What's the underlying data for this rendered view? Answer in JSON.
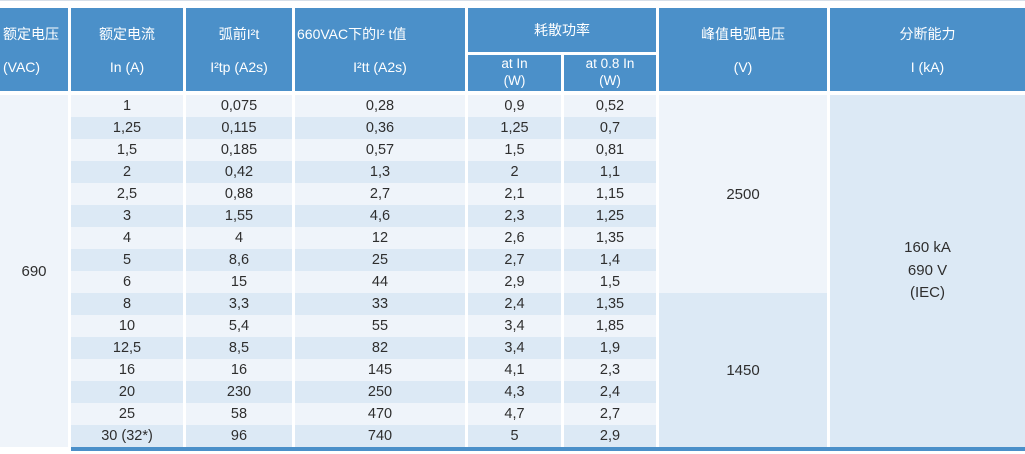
{
  "table": {
    "headers": {
      "rated_voltage": {
        "line1": "额定电压",
        "line2": "(VAC)"
      },
      "rated_current": {
        "line1": "额定电流",
        "line2": "In (A)"
      },
      "prearc_i2t": {
        "line1": "弧前I²t",
        "line2": "I²tp (A2s)"
      },
      "i2t_660vac": {
        "line1": "660VAC下的I² t值",
        "line2": "I²tt (A2s)"
      },
      "power_group": {
        "label": "耗散功率"
      },
      "power_at_in": {
        "line1": "at  In",
        "line2": "(W)"
      },
      "power_at_08in": {
        "line1": "at 0.8  In",
        "line2": "(W)"
      },
      "peak_arc_voltage": {
        "line1": "峰值电弧电压",
        "line2": "(V)"
      },
      "breaking_capacity": {
        "line1": "分断能力",
        "line2": "I (kA)"
      }
    },
    "merged": {
      "rated_voltage": "690",
      "peak_arc_voltage_upper": "2500",
      "peak_arc_voltage_lower": "1450",
      "breaking_capacity": [
        "160 kA",
        "690 V",
        "(IEC)"
      ]
    },
    "rows": [
      [
        "1",
        "0,075",
        "0,28",
        "0,9",
        "0,52"
      ],
      [
        "1,25",
        "0,115",
        "0,36",
        "1,25",
        "0,7"
      ],
      [
        "1,5",
        "0,185",
        "0,57",
        "1,5",
        "0,81"
      ],
      [
        "2",
        "0,42",
        "1,3",
        "2",
        "1,1"
      ],
      [
        "2,5",
        "0,88",
        "2,7",
        "2,1",
        "1,15"
      ],
      [
        "3",
        "1,55",
        "4,6",
        "2,3",
        "1,25"
      ],
      [
        "4",
        "4",
        "12",
        "2,6",
        "1,35"
      ],
      [
        "5",
        "8,6",
        "25",
        "2,7",
        "1,4"
      ],
      [
        "6",
        "15",
        "44",
        "2,9",
        "1,5"
      ],
      [
        "8",
        "3,3",
        "33",
        "2,4",
        "1,35"
      ],
      [
        "10",
        "5,4",
        "55",
        "3,4",
        "1,85"
      ],
      [
        "12,5",
        "8,5",
        "82",
        "3,4",
        "1,9"
      ],
      [
        "16",
        "16",
        "145",
        "4,1",
        "2,3"
      ],
      [
        "20",
        "230",
        "250",
        "4,3",
        "2,4"
      ],
      [
        "25",
        "58",
        "470",
        "4,7",
        "2,7"
      ],
      [
        "30 (32*)",
        "96",
        "740",
        "5",
        "2,9"
      ]
    ]
  },
  "colors": {
    "header_blue": "#4b90c9",
    "stripe_light": "#eff4fa",
    "stripe_blue": "#dce9f5",
    "text_dark": "#2e2e2e"
  }
}
